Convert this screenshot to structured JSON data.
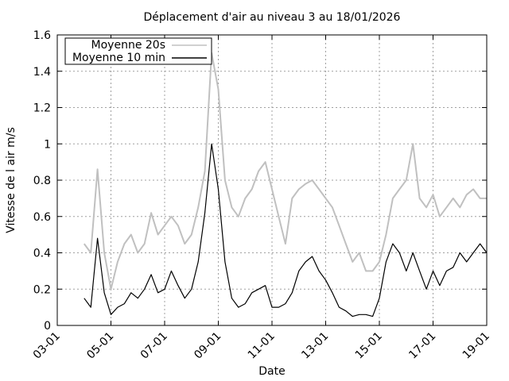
{
  "chart_data": {
    "type": "line",
    "title": "Déplacement d'air au niveau 3 au 18/01/2026",
    "xlabel": "Date",
    "ylabel": "Vitesse de l air m/s",
    "x_ticks": [
      "03-01",
      "05-01",
      "07-01",
      "09-01",
      "11-01",
      "13-01",
      "15-01",
      "17-01",
      "19-01"
    ],
    "y_ticks": [
      "0",
      "0.2",
      "0.4",
      "0.6",
      "0.8",
      "1",
      "1.2",
      "1.4",
      "1.6"
    ],
    "xlim": [
      "03-01",
      "19-01"
    ],
    "ylim": [
      0,
      1.6
    ],
    "grid": true,
    "legend_position": "top-left",
    "colors": {
      "moyenne_20s": "#c0c0c0",
      "moyenne_10min": "#000000"
    },
    "series": [
      {
        "name": "Moyenne 20s",
        "color": "#c0c0c0",
        "x": [
          "04-01 00:00",
          "04-01 06:00",
          "04-01 12:00",
          "04-01 18:00",
          "05-01 00:00",
          "05-01 06:00",
          "05-01 12:00",
          "05-01 18:00",
          "06-01 00:00",
          "06-01 06:00",
          "06-01 12:00",
          "06-01 18:00",
          "07-01 00:00",
          "07-01 06:00",
          "07-01 12:00",
          "07-01 18:00",
          "08-01 00:00",
          "08-01 06:00",
          "08-01 12:00",
          "08-01 18:00",
          "09-01 00:00",
          "09-01 06:00",
          "09-01 12:00",
          "09-01 18:00",
          "10-01 00:00",
          "10-01 06:00",
          "10-01 12:00",
          "10-01 18:00",
          "11-01 00:00",
          "11-01 06:00",
          "11-01 12:00",
          "11-01 18:00",
          "12-01 00:00",
          "12-01 06:00",
          "12-01 12:00",
          "12-01 18:00",
          "13-01 00:00",
          "13-01 06:00",
          "13-01 12:00",
          "13-01 18:00",
          "14-01 00:00",
          "14-01 06:00",
          "14-01 12:00",
          "14-01 18:00",
          "15-01 00:00",
          "15-01 06:00",
          "15-01 12:00",
          "15-01 18:00",
          "16-01 00:00",
          "16-01 06:00",
          "16-01 12:00",
          "16-01 18:00",
          "17-01 00:00",
          "17-01 06:00",
          "17-01 12:00",
          "17-01 18:00",
          "18-01 00:00",
          "18-01 06:00",
          "18-01 12:00",
          "18-01 18:00",
          "19-01 00:00"
        ],
        "values": [
          0.45,
          0.4,
          0.86,
          0.4,
          0.2,
          0.35,
          0.45,
          0.5,
          0.4,
          0.45,
          0.62,
          0.5,
          0.55,
          0.6,
          0.55,
          0.45,
          0.5,
          0.65,
          0.85,
          1.5,
          1.3,
          0.8,
          0.65,
          0.6,
          0.7,
          0.75,
          0.85,
          0.9,
          0.75,
          0.6,
          0.45,
          0.7,
          0.75,
          0.78,
          0.8,
          0.75,
          0.7,
          0.65,
          0.55,
          0.45,
          0.35,
          0.4,
          0.3,
          0.3,
          0.35,
          0.5,
          0.7,
          0.75,
          0.8,
          1.0,
          0.7,
          0.65,
          0.72,
          0.6,
          0.65,
          0.7,
          0.65,
          0.72,
          0.75,
          0.7,
          0.7
        ]
      },
      {
        "name": "Moyenne 10 min",
        "color": "#000000",
        "x": [
          "04-01 00:00",
          "04-01 06:00",
          "04-01 12:00",
          "04-01 18:00",
          "05-01 00:00",
          "05-01 06:00",
          "05-01 12:00",
          "05-01 18:00",
          "06-01 00:00",
          "06-01 06:00",
          "06-01 12:00",
          "06-01 18:00",
          "07-01 00:00",
          "07-01 06:00",
          "07-01 12:00",
          "07-01 18:00",
          "08-01 00:00",
          "08-01 06:00",
          "08-01 12:00",
          "08-01 18:00",
          "09-01 00:00",
          "09-01 06:00",
          "09-01 12:00",
          "09-01 18:00",
          "10-01 00:00",
          "10-01 06:00",
          "10-01 12:00",
          "10-01 18:00",
          "11-01 00:00",
          "11-01 06:00",
          "11-01 12:00",
          "11-01 18:00",
          "12-01 00:00",
          "12-01 06:00",
          "12-01 12:00",
          "12-01 18:00",
          "13-01 00:00",
          "13-01 06:00",
          "13-01 12:00",
          "13-01 18:00",
          "14-01 00:00",
          "14-01 06:00",
          "14-01 12:00",
          "14-01 18:00",
          "15-01 00:00",
          "15-01 06:00",
          "15-01 12:00",
          "15-01 18:00",
          "16-01 00:00",
          "16-01 06:00",
          "16-01 12:00",
          "16-01 18:00",
          "17-01 00:00",
          "17-01 06:00",
          "17-01 12:00",
          "17-01 18:00",
          "18-01 00:00",
          "18-01 06:00",
          "18-01 12:00",
          "18-01 18:00",
          "19-01 00:00"
        ],
        "values": [
          0.15,
          0.1,
          0.48,
          0.18,
          0.06,
          0.1,
          0.12,
          0.18,
          0.15,
          0.2,
          0.28,
          0.18,
          0.2,
          0.3,
          0.22,
          0.15,
          0.2,
          0.35,
          0.62,
          1.0,
          0.75,
          0.35,
          0.15,
          0.1,
          0.12,
          0.18,
          0.2,
          0.22,
          0.1,
          0.1,
          0.12,
          0.18,
          0.3,
          0.35,
          0.38,
          0.3,
          0.25,
          0.18,
          0.1,
          0.08,
          0.05,
          0.06,
          0.06,
          0.05,
          0.15,
          0.35,
          0.45,
          0.4,
          0.3,
          0.4,
          0.3,
          0.2,
          0.3,
          0.22,
          0.3,
          0.32,
          0.4,
          0.35,
          0.4,
          0.45,
          0.4
        ]
      }
    ]
  }
}
